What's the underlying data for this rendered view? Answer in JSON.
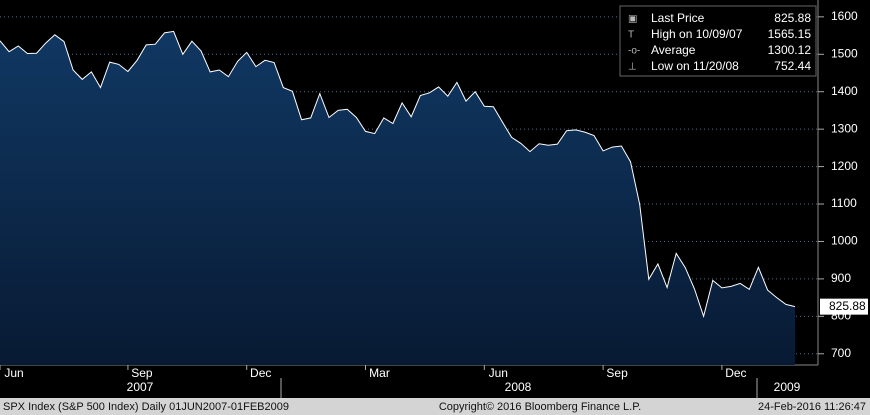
{
  "chart_data": {
    "type": "area",
    "categories": [
      "Jun",
      null,
      null,
      null,
      null,
      null,
      null,
      null,
      null,
      null,
      null,
      null,
      null,
      null,
      "Sep",
      null,
      null,
      null,
      null,
      null,
      null,
      null,
      null,
      null,
      null,
      null,
      null,
      "Dec",
      null,
      null,
      null,
      null,
      null,
      null,
      null,
      null,
      null,
      null,
      null,
      null,
      "Mar",
      null,
      null,
      null,
      null,
      null,
      null,
      null,
      null,
      null,
      null,
      null,
      null,
      "Jun",
      null,
      null,
      null,
      null,
      null,
      null,
      null,
      null,
      null,
      null,
      null,
      null,
      "Sep",
      null,
      null,
      null,
      null,
      null,
      null,
      null,
      null,
      null,
      null,
      null,
      null,
      "Dec",
      null,
      null,
      null,
      null,
      null,
      null,
      null,
      null
    ],
    "values": [
      1536,
      1507,
      1522,
      1502,
      1503,
      1530,
      1552,
      1534,
      1458,
      1433,
      1453,
      1411,
      1479,
      1473,
      1454,
      1484,
      1525,
      1527,
      1557,
      1561,
      1500,
      1535,
      1509,
      1453,
      1458,
      1440,
      1481,
      1505,
      1467,
      1484,
      1478,
      1411,
      1401,
      1325,
      1330,
      1395,
      1331,
      1350,
      1353,
      1331,
      1294,
      1288,
      1330,
      1315,
      1370,
      1333,
      1390,
      1397,
      1413,
      1388,
      1425,
      1375,
      1400,
      1361,
      1360,
      1318,
      1278,
      1262,
      1240,
      1261,
      1257,
      1260,
      1296,
      1298,
      1292,
      1283,
      1242,
      1252,
      1255,
      1213,
      1099,
      899,
      940,
      877,
      968,
      930,
      873,
      800,
      896,
      876,
      880,
      888,
      872,
      931,
      870,
      850,
      832,
      826
    ],
    "color": "#ffffff",
    "years": [
      "2007",
      "2008",
      "2009"
    ],
    "ylim": [
      670,
      1645
    ],
    "yticks": [
      700,
      800,
      900,
      1000,
      1100,
      1200,
      1300,
      1400,
      1500,
      1600
    ],
    "grid": true,
    "legend": [
      {
        "label": "Last Price",
        "value": 825.88
      },
      {
        "label": "High on 10/09/07",
        "value": 1565.15
      },
      {
        "label": "Average",
        "value": 1300.12
      },
      {
        "label": "Low on 11/20/08",
        "value": 752.44
      }
    ],
    "footer": {
      "left": "SPX Index (S&P 500 Index)  Daily 01JUN2007-01FEB2009",
      "center": "Copyright© 2016 Bloomberg Finance L.P.",
      "right": "24-Feb-2016 11:26:47"
    }
  }
}
